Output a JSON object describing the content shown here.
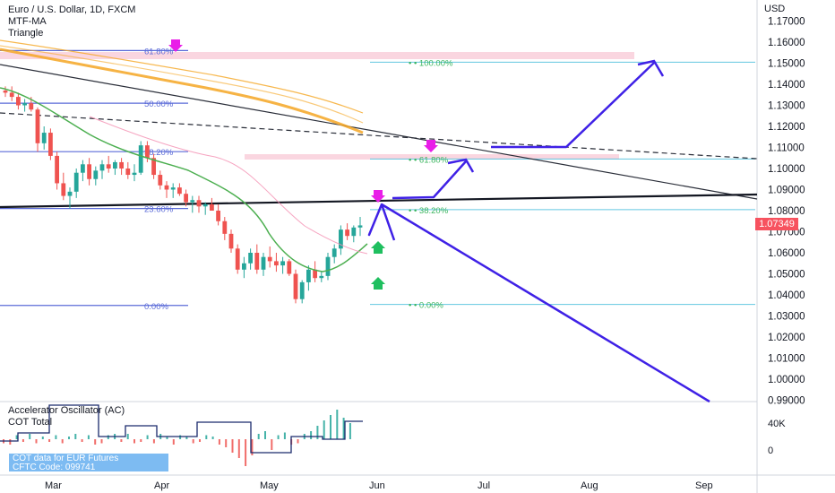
{
  "header": {
    "symbol_line": "Euro / U.S. Dollar, 1D, FXCM",
    "indicator1": "MTF-MA",
    "indicator2": "Triangle"
  },
  "price_axis": {
    "currency": "USD",
    "ticks": [
      "1.17000",
      "1.16000",
      "1.15000",
      "1.14000",
      "1.13000",
      "1.12000",
      "1.11000",
      "1.10000",
      "1.09000",
      "1.08000",
      "1.07000",
      "1.06000",
      "1.05000",
      "1.04000",
      "1.03000",
      "1.02000",
      "1.01000",
      "1.00000",
      "0.99000"
    ],
    "current_price": "1.07349"
  },
  "time_axis": {
    "labels": [
      "Mar",
      "Apr",
      "May",
      "Jun",
      "Jul",
      "Aug",
      "Sep"
    ]
  },
  "fib_left": [
    "61.80%",
    "50.00%",
    "38.20%",
    "23.60%",
    "0.00%"
  ],
  "fib_right": [
    "100.00%",
    "61.80%",
    "38.20%",
    "0.00%"
  ],
  "oscillator": {
    "title": "Accelerator Oscillator (AC)",
    "cot_label": "COT Total",
    "ticks": [
      "40K",
      "0"
    ],
    "cot_info_1": "COT data for EUR Futures",
    "cot_info_2": "CFTC Code: 099741"
  },
  "colors": {
    "up_candle": "#26a69a",
    "down_candle": "#ef5350",
    "projection": "#3f21e6",
    "fib_blue": "#5b6bd8",
    "fib_green": "#3bb55e",
    "zone_pink": "#f8c8d6",
    "ma_orange": "#f5a623",
    "ma_green": "#4caf50",
    "ma_pink": "#f48fb1",
    "marker_magenta": "#e91ee8",
    "marker_green": "#1fbf5f",
    "current_price_bg": "#f7525f"
  },
  "chart_data": {
    "type": "candlestick",
    "symbol": "Euro / U.S. Dollar",
    "timeframe": "1D",
    "x_labels": [
      "Mar",
      "Apr",
      "May",
      "Jun",
      "Jul",
      "Aug",
      "Sep"
    ],
    "ylim": [
      0.99,
      1.175
    ],
    "candles": [
      [
        1.137,
        1.139,
        1.134,
        1.136
      ],
      [
        1.136,
        1.139,
        1.132,
        1.134
      ],
      [
        1.134,
        1.136,
        1.128,
        1.13
      ],
      [
        1.13,
        1.133,
        1.127,
        1.131
      ],
      [
        1.131,
        1.134,
        1.127,
        1.128
      ],
      [
        1.128,
        1.129,
        1.108,
        1.112
      ],
      [
        1.112,
        1.12,
        1.109,
        1.117
      ],
      [
        1.117,
        1.119,
        1.104,
        1.106
      ],
      [
        1.106,
        1.108,
        1.09,
        1.093
      ],
      [
        1.093,
        1.098,
        1.085,
        1.087
      ],
      [
        1.087,
        1.091,
        1.081,
        1.089
      ],
      [
        1.089,
        1.1,
        1.086,
        1.098
      ],
      [
        1.098,
        1.104,
        1.094,
        1.102
      ],
      [
        1.102,
        1.105,
        1.092,
        1.095
      ],
      [
        1.095,
        1.101,
        1.092,
        1.099
      ],
      [
        1.099,
        1.104,
        1.095,
        1.102
      ],
      [
        1.102,
        1.106,
        1.098,
        1.1
      ],
      [
        1.1,
        1.104,
        1.097,
        1.103
      ],
      [
        1.103,
        1.105,
        1.097,
        1.1
      ],
      [
        1.1,
        1.103,
        1.095,
        1.097
      ],
      [
        1.097,
        1.102,
        1.094,
        1.098
      ],
      [
        1.098,
        1.113,
        1.097,
        1.111
      ],
      [
        1.111,
        1.113,
        1.103,
        1.105
      ],
      [
        1.105,
        1.107,
        1.095,
        1.097
      ],
      [
        1.097,
        1.099,
        1.09,
        1.092
      ],
      [
        1.092,
        1.094,
        1.086,
        1.09
      ],
      [
        1.09,
        1.093,
        1.086,
        1.091
      ],
      [
        1.091,
        1.093,
        1.087,
        1.088
      ],
      [
        1.088,
        1.09,
        1.082,
        1.084
      ],
      [
        1.084,
        1.087,
        1.079,
        1.085
      ],
      [
        1.085,
        1.087,
        1.079,
        1.082
      ],
      [
        1.082,
        1.084,
        1.078,
        1.083
      ],
      [
        1.083,
        1.086,
        1.08,
        1.08
      ],
      [
        1.08,
        1.083,
        1.073,
        1.075
      ],
      [
        1.075,
        1.077,
        1.066,
        1.069
      ],
      [
        1.069,
        1.071,
        1.06,
        1.062
      ],
      [
        1.062,
        1.064,
        1.05,
        1.052
      ],
      [
        1.052,
        1.058,
        1.048,
        1.055
      ],
      [
        1.055,
        1.062,
        1.052,
        1.06
      ],
      [
        1.06,
        1.064,
        1.05,
        1.052
      ],
      [
        1.052,
        1.06,
        1.049,
        1.058
      ],
      [
        1.058,
        1.063,
        1.053,
        1.056
      ],
      [
        1.056,
        1.06,
        1.051,
        1.054
      ],
      [
        1.054,
        1.058,
        1.05,
        1.056
      ],
      [
        1.056,
        1.057,
        1.049,
        1.05
      ],
      [
        1.05,
        1.052,
        1.036,
        1.038
      ],
      [
        1.038,
        1.047,
        1.036,
        1.046
      ],
      [
        1.046,
        1.054,
        1.042,
        1.052
      ],
      [
        1.052,
        1.056,
        1.046,
        1.048
      ],
      [
        1.048,
        1.051,
        1.046,
        1.049
      ],
      [
        1.049,
        1.06,
        1.047,
        1.058
      ],
      [
        1.058,
        1.064,
        1.055,
        1.062
      ],
      [
        1.062,
        1.073,
        1.059,
        1.071
      ],
      [
        1.071,
        1.074,
        1.066,
        1.068
      ],
      [
        1.068,
        1.073,
        1.065,
        1.072
      ],
      [
        1.072,
        1.077,
        1.068,
        1.073
      ]
    ],
    "fib_levels": [
      {
        "label": "61.80%",
        "price": 1.156
      },
      {
        "label": "50.00%",
        "price": 1.131
      },
      {
        "label": "38.20%",
        "price": 1.108
      },
      {
        "label": "23.60%",
        "price": 1.081
      },
      {
        "label": "0.00%",
        "price": 1.035
      }
    ],
    "fib_levels_right": [
      {
        "label": "100.00%",
        "price": 1.1505
      },
      {
        "label": "61.80%",
        "price": 1.1045
      },
      {
        "label": "38.20%",
        "price": 1.0805
      },
      {
        "label": "0.00%",
        "price": 1.0355
      }
    ],
    "current_price": 1.07349
  }
}
